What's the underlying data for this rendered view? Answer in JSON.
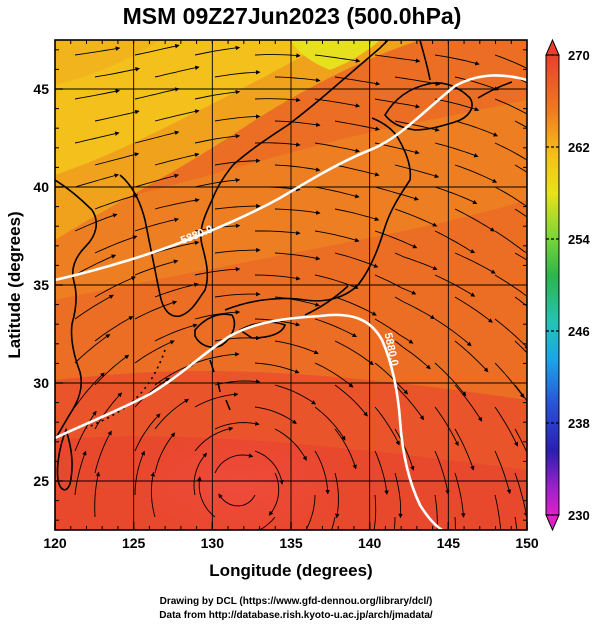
{
  "title": "MSM 09Z27Jun2023 (500.0hPa)",
  "xlabel": "Longitude (degrees)",
  "ylabel": "Latitude  (degrees)",
  "x_ticks": [
    "120",
    "125",
    "130",
    "135",
    "140",
    "145",
    "150"
  ],
  "y_ticks": [
    "25",
    "30",
    "35",
    "40",
    "45"
  ],
  "colorbar": {
    "ticks": [
      "270",
      "262",
      "254",
      "246",
      "238",
      "230"
    ],
    "min": 230,
    "max": 270
  },
  "contour_label": "5880.0",
  "credits": {
    "line1": "Drawing by DCL (https://www.gfd-dennou.org/library/dcl/)",
    "line2": "Data from http://database.rish.kyoto-u.ac.jp/arch/jmadata/"
  },
  "chart_data": {
    "type": "map",
    "xlim": [
      120,
      150
    ],
    "ylim": [
      22.5,
      47.5
    ],
    "field": "temperature (K), shaded",
    "colorbar_range": [
      230,
      270
    ],
    "contour_value": 5880.0,
    "grid": true,
    "streamlines": true
  }
}
